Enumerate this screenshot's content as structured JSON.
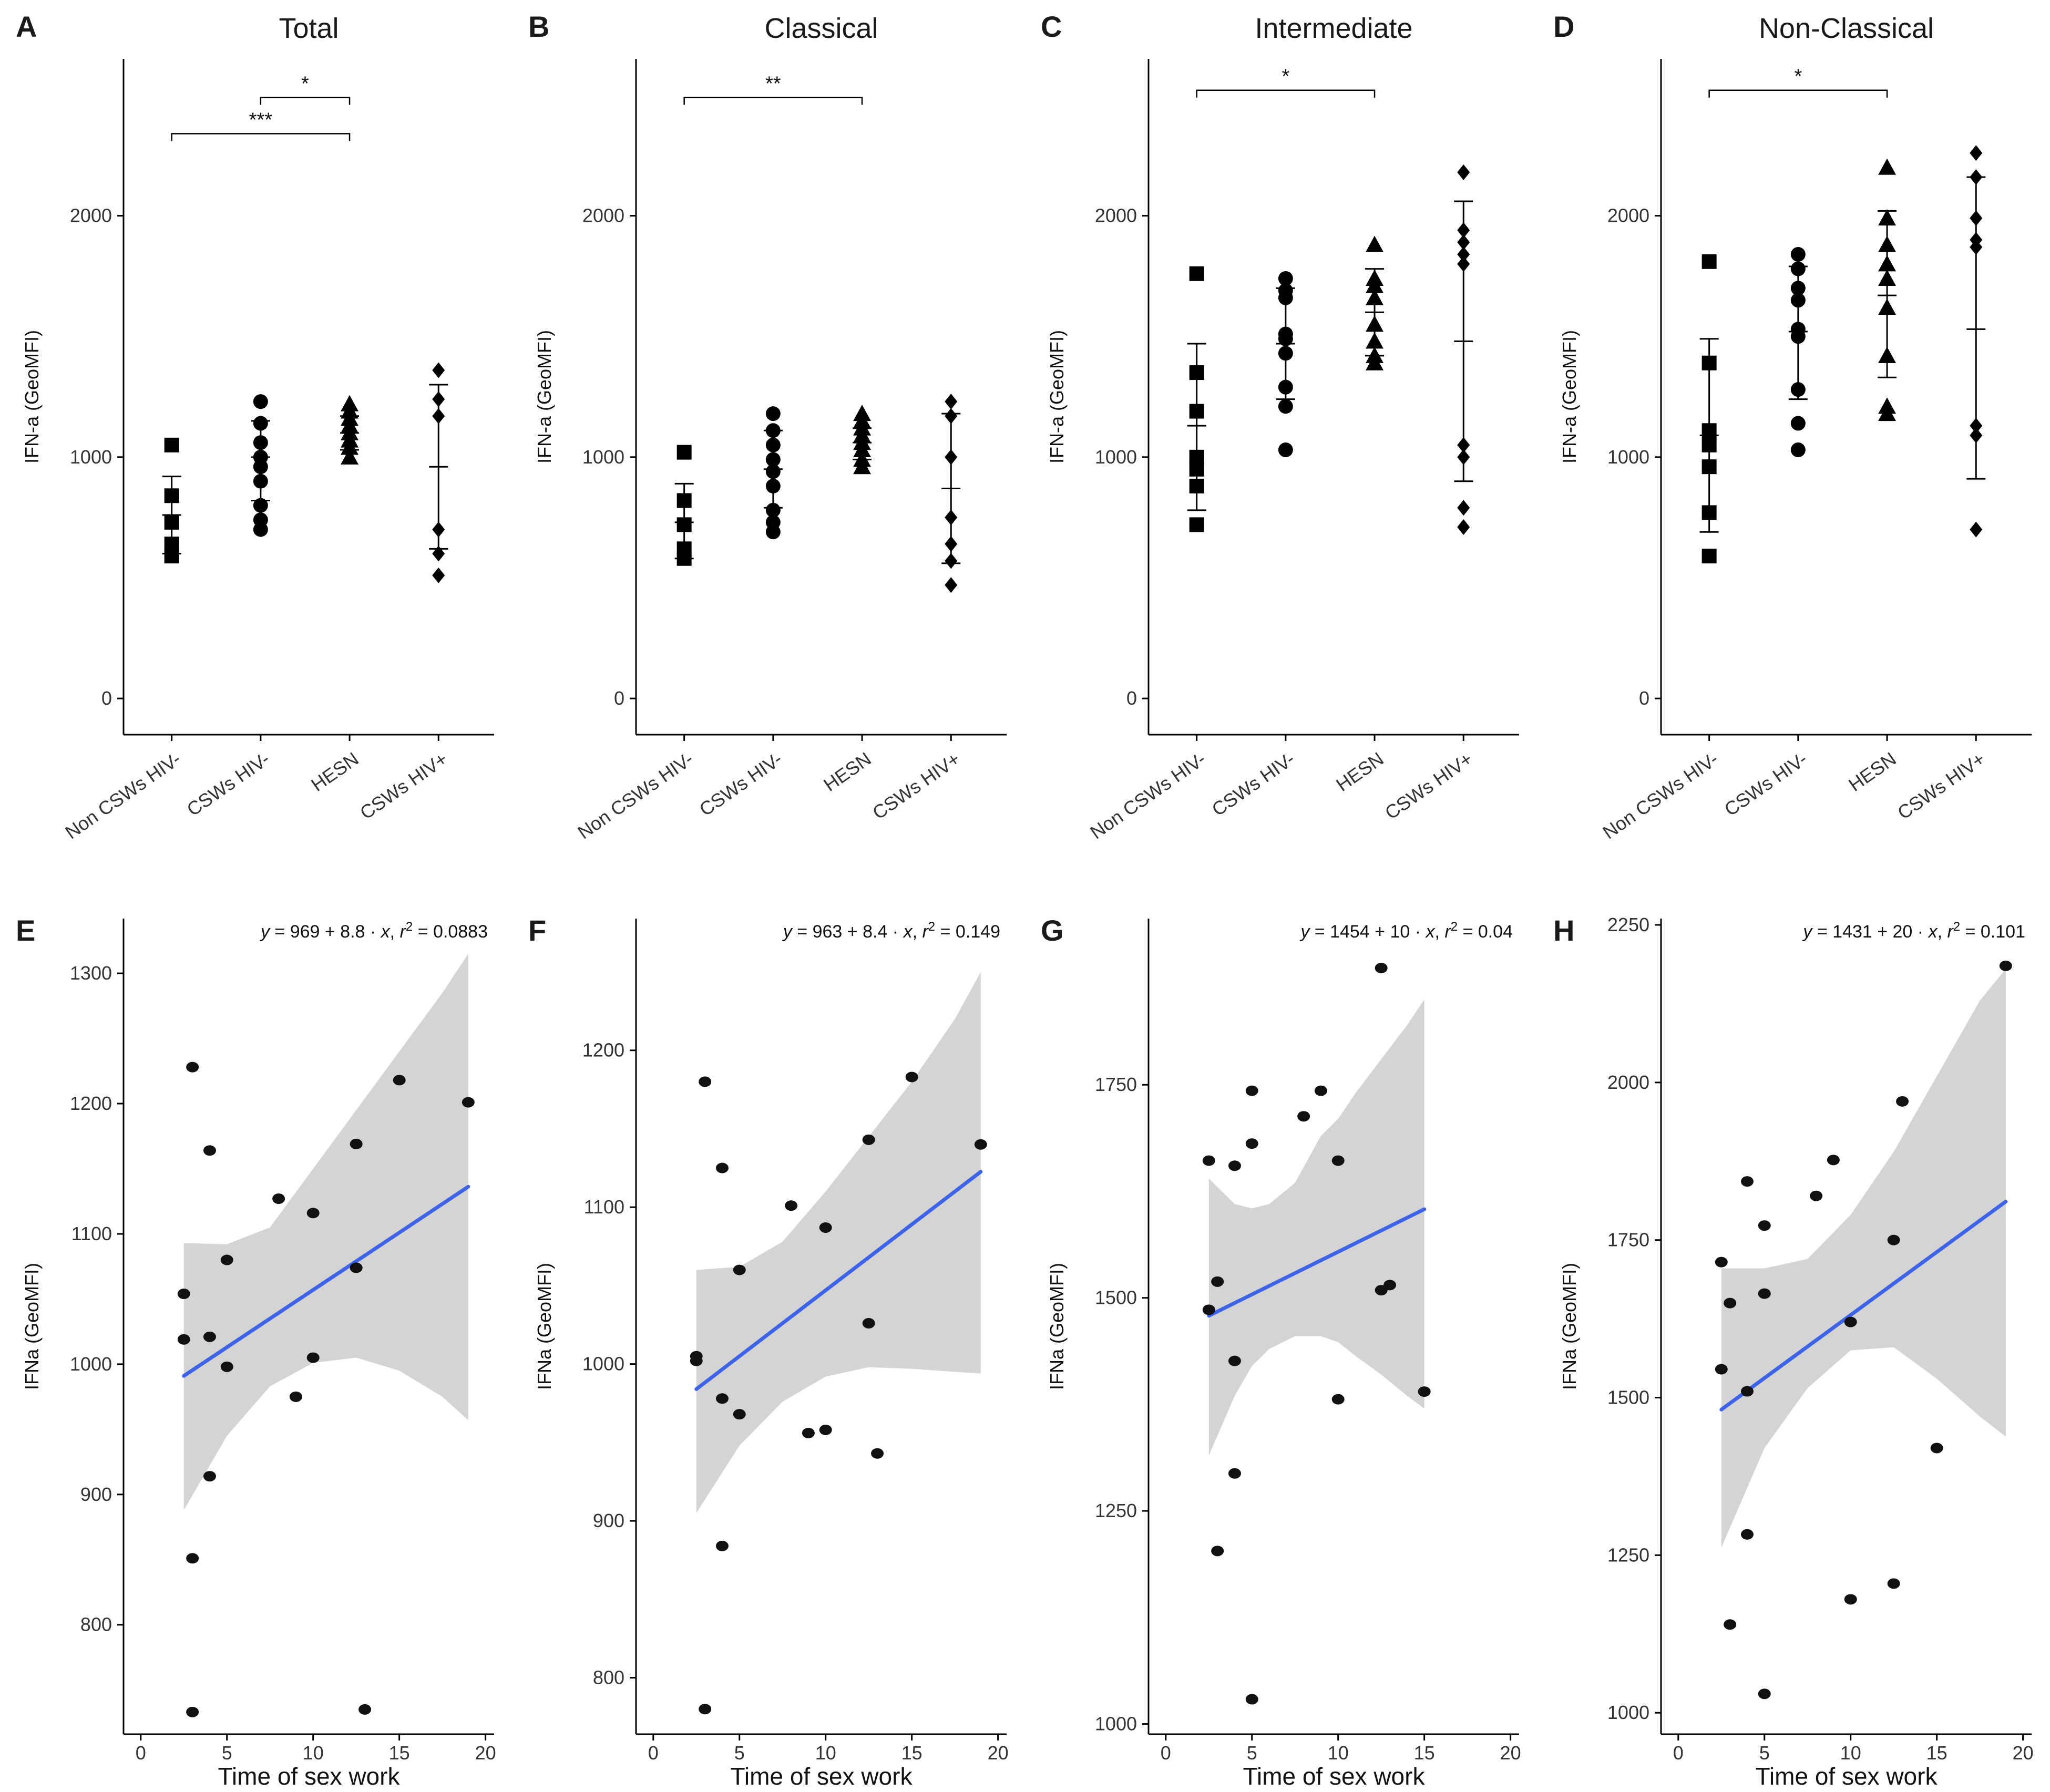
{
  "chart_data": [
    {
      "id": "A",
      "type": "scatter",
      "title": "Total",
      "ylabel": "IFN-a (GeoMFI)",
      "xlabel": "",
      "ylim": [
        -150,
        2650
      ],
      "yticks": [
        0,
        1000,
        2000
      ],
      "categories": [
        "Non CSWs HIV-",
        "CSWs HIV-",
        "HESN",
        "CSWs HIV+"
      ],
      "markers": [
        "square",
        "circle",
        "triangle",
        "diamond"
      ],
      "points": [
        [
          1050,
          840,
          730,
          640,
          590
        ],
        [
          1230,
          1140,
          1060,
          1000,
          960,
          900,
          800,
          740,
          700
        ],
        [
          1220,
          1190,
          1160,
          1130,
          1100,
          1070,
          1040,
          1000
        ],
        [
          1360,
          1240,
          1170,
          700,
          600,
          510
        ]
      ],
      "mean": [
        760,
        1000,
        1100,
        960
      ],
      "upper": [
        920,
        1150,
        1170,
        1300
      ],
      "lower": [
        600,
        820,
        1030,
        620
      ],
      "significance": [
        {
          "from": 1,
          "to": 2,
          "label": "*",
          "y": 2490
        },
        {
          "from": 0,
          "to": 2,
          "label": "***",
          "y": 2340
        }
      ]
    },
    {
      "id": "B",
      "type": "scatter",
      "title": "Classical",
      "ylabel": "IFN-a (GeoMFI)",
      "xlabel": "",
      "ylim": [
        -150,
        2650
      ],
      "yticks": [
        0,
        1000,
        2000
      ],
      "categories": [
        "Non CSWs HIV-",
        "CSWs HIV-",
        "HESN",
        "CSWs HIV+"
      ],
      "markers": [
        "square",
        "circle",
        "triangle",
        "diamond"
      ],
      "points": [
        [
          1020,
          820,
          720,
          620,
          580
        ],
        [
          1180,
          1110,
          1050,
          990,
          940,
          880,
          780,
          730,
          690
        ],
        [
          1180,
          1150,
          1120,
          1090,
          1060,
          1030,
          990,
          960
        ],
        [
          1230,
          1170,
          1000,
          750,
          640,
          570,
          470
        ]
      ],
      "mean": [
        730,
        950,
        1060,
        870
      ],
      "upper": [
        890,
        1110,
        1120,
        1180
      ],
      "lower": [
        580,
        790,
        990,
        560
      ],
      "significance": [
        {
          "from": 0,
          "to": 2,
          "label": "**",
          "y": 2490
        }
      ]
    },
    {
      "id": "C",
      "type": "scatter",
      "title": "Intermediate",
      "ylabel": "IFN-a (GeoMFI)",
      "xlabel": "",
      "ylim": [
        -150,
        2650
      ],
      "yticks": [
        0,
        1000,
        2000
      ],
      "categories": [
        "Non CSWs HIV-",
        "CSWs HIV-",
        "HESN",
        "CSWs HIV+"
      ],
      "markers": [
        "square",
        "circle",
        "triangle",
        "diamond"
      ],
      "points": [
        [
          1760,
          1350,
          1190,
          1000,
          950,
          880,
          720
        ],
        [
          1740,
          1690,
          1660,
          1510,
          1490,
          1430,
          1290,
          1210,
          1030
        ],
        [
          1880,
          1740,
          1710,
          1660,
          1550,
          1480,
          1420,
          1390
        ],
        [
          2180,
          1940,
          1890,
          1840,
          1800,
          1050,
          1000,
          790,
          710
        ]
      ],
      "mean": [
        1130,
        1470,
        1600,
        1480
      ],
      "upper": [
        1470,
        1700,
        1780,
        2060
      ],
      "lower": [
        780,
        1240,
        1420,
        900
      ],
      "significance": [
        {
          "from": 0,
          "to": 2,
          "label": "*",
          "y": 2520
        }
      ]
    },
    {
      "id": "D",
      "type": "scatter",
      "title": "Non-Classical",
      "ylabel": "IFN-a (GeoMFI)",
      "xlabel": "",
      "ylim": [
        -150,
        2650
      ],
      "yticks": [
        0,
        1000,
        2000
      ],
      "categories": [
        "Non CSWs HIV-",
        "CSWs HIV-",
        "HESN",
        "CSWs HIV+"
      ],
      "markers": [
        "square",
        "circle",
        "triangle",
        "diamond"
      ],
      "points": [
        [
          1810,
          1390,
          1110,
          1050,
          960,
          770,
          590
        ],
        [
          1840,
          1780,
          1700,
          1650,
          1530,
          1500,
          1280,
          1140,
          1030
        ],
        [
          2200,
          1990,
          1880,
          1800,
          1740,
          1620,
          1420,
          1210,
          1180
        ],
        [
          2260,
          2160,
          1990,
          1900,
          1870,
          1130,
          1090,
          700
        ]
      ],
      "mean": [
        1090,
        1520,
        1670,
        1530
      ],
      "upper": [
        1490,
        1790,
        2020,
        2160
      ],
      "lower": [
        690,
        1240,
        1330,
        910
      ],
      "significance": [
        {
          "from": 0,
          "to": 2,
          "label": "*",
          "y": 2520
        }
      ]
    },
    {
      "id": "E",
      "type": "scatter",
      "title": "",
      "ylabel": "IFNa (GeoMFI)",
      "xlabel": "Time of sex work",
      "equation": {
        "y": "y",
        "a": "969",
        "b": "8.8",
        "x": "x",
        "r": "r",
        "exp": "2",
        "r2": "0.0883"
      },
      "xlim": [
        -1,
        20.5
      ],
      "xticks": [
        0,
        5,
        10,
        15,
        20
      ],
      "ylim": [
        716,
        1342
      ],
      "yticks": [
        800,
        900,
        1000,
        1100,
        1200,
        1300
      ],
      "x": [
        3,
        4,
        2.5,
        2.5,
        4,
        5,
        5,
        8,
        10,
        10,
        9,
        12.5,
        12.5,
        15,
        19,
        13,
        4,
        3,
        3
      ],
      "y": [
        1228,
        1164,
        1054,
        1019,
        1021,
        1080,
        998,
        1127,
        1116,
        1005,
        975,
        1169,
        1074,
        1218,
        1201,
        735,
        914,
        851,
        733
      ],
      "fit": {
        "intercept": 969,
        "slope": 8.8,
        "x_range": [
          2.5,
          19
        ]
      },
      "band": {
        "x": [
          2.5,
          5,
          7.5,
          10,
          12.5,
          15,
          17.5,
          19
        ],
        "lower": [
          888,
          945,
          983,
          1001,
          1005,
          995,
          975,
          957
        ],
        "upper": [
          1093,
          1092,
          1105,
          1150,
          1195,
          1240,
          1285,
          1315
        ]
      }
    },
    {
      "id": "F",
      "type": "scatter",
      "title": "",
      "ylabel": "IFNa (GeoMFI)",
      "xlabel": "Time of sex work",
      "equation": {
        "y": "y",
        "a": "963",
        "b": "8.4",
        "x": "x",
        "r": "r",
        "exp": "2",
        "r2": "0.149"
      },
      "xlim": [
        -1,
        20.5
      ],
      "xticks": [
        0,
        5,
        10,
        15,
        20
      ],
      "ylim": [
        764,
        1284
      ],
      "yticks": [
        800,
        900,
        1000,
        1100,
        1200
      ],
      "x": [
        3,
        4,
        2.5,
        2.5,
        5,
        4,
        5,
        8,
        10,
        9,
        10,
        12.5,
        12.5,
        13,
        15,
        19,
        4,
        3
      ],
      "y": [
        1180,
        1125,
        1005,
        1002,
        1060,
        978,
        968,
        1101,
        1087,
        956,
        958,
        1143,
        1026,
        943,
        1183,
        1140,
        884,
        780
      ],
      "fit": {
        "intercept": 963,
        "slope": 8.4,
        "x_range": [
          2.5,
          19
        ]
      },
      "band": {
        "x": [
          2.5,
          5,
          7.5,
          10,
          12.5,
          15,
          17.5,
          19
        ],
        "lower": [
          905,
          948,
          976,
          992,
          998,
          997,
          995,
          994
        ],
        "upper": [
          1060,
          1062,
          1078,
          1110,
          1145,
          1180,
          1220,
          1250
        ]
      }
    },
    {
      "id": "G",
      "type": "scatter",
      "title": "",
      "ylabel": "IFNa (GeoMFI)",
      "xlabel": "Time of sex work",
      "equation": {
        "y": "y",
        "a": "1454",
        "b": "10",
        "x": "x",
        "r": "r",
        "exp": "2",
        "r2": "0.04"
      },
      "xlim": [
        -1,
        20.5
      ],
      "xticks": [
        0,
        5,
        10,
        15,
        20
      ],
      "ylim": [
        988,
        1945
      ],
      "yticks": [
        1000,
        1250,
        1500,
        1750
      ],
      "x": [
        2.5,
        4,
        5,
        5,
        8,
        9,
        10,
        12.5,
        12.5,
        13,
        15,
        2.5,
        3,
        4,
        4,
        3,
        5,
        10
      ],
      "y": [
        1661,
        1655,
        1743,
        1681,
        1713,
        1743,
        1661,
        1887,
        1509,
        1515,
        1390,
        1486,
        1519,
        1426,
        1294,
        1203,
        1029,
        1381
      ],
      "fit": {
        "intercept": 1454,
        "slope": 10,
        "x_range": [
          2.5,
          15
        ]
      },
      "band": {
        "x": [
          2.5,
          4,
          5,
          6,
          7.5,
          9,
          10,
          11,
          12.5,
          14,
          15
        ],
        "lower": [
          1315,
          1385,
          1420,
          1440,
          1455,
          1455,
          1448,
          1432,
          1410,
          1385,
          1370
        ],
        "upper": [
          1640,
          1610,
          1605,
          1610,
          1635,
          1690,
          1710,
          1740,
          1780,
          1820,
          1850
        ]
      }
    },
    {
      "id": "H",
      "type": "scatter",
      "title": "",
      "ylabel": "IFNa (GeoMFI)",
      "xlabel": "Time of sex work",
      "equation": {
        "y": "y",
        "a": "1431",
        "b": "20",
        "x": "x",
        "r": "r",
        "exp": "2",
        "r2": "0.101"
      },
      "xlim": [
        -1,
        20.5
      ],
      "xticks": [
        0,
        5,
        10,
        15,
        20
      ],
      "ylim": [
        966,
        2260
      ],
      "yticks": [
        1000,
        1250,
        1500,
        1750,
        2000,
        2250
      ],
      "x": [
        2.5,
        3,
        4,
        4,
        5,
        5,
        8,
        9,
        10,
        12.5,
        13,
        15,
        19,
        12.5,
        2.5,
        4,
        3,
        5,
        10
      ],
      "y": [
        1715,
        1650,
        1843,
        1510,
        1773,
        1665,
        1820,
        1877,
        1620,
        1750,
        1970,
        1420,
        2185,
        1205,
        1545,
        1283,
        1140,
        1030,
        1180
      ],
      "fit": {
        "intercept": 1431,
        "slope": 20,
        "x_range": [
          2.5,
          19
        ]
      },
      "band": {
        "x": [
          2.5,
          5,
          7.5,
          10,
          12.5,
          15,
          17.5,
          19
        ],
        "lower": [
          1262,
          1420,
          1515,
          1575,
          1580,
          1530,
          1470,
          1438
        ],
        "upper": [
          1705,
          1705,
          1720,
          1790,
          1890,
          2010,
          2130,
          2180
        ]
      }
    }
  ]
}
